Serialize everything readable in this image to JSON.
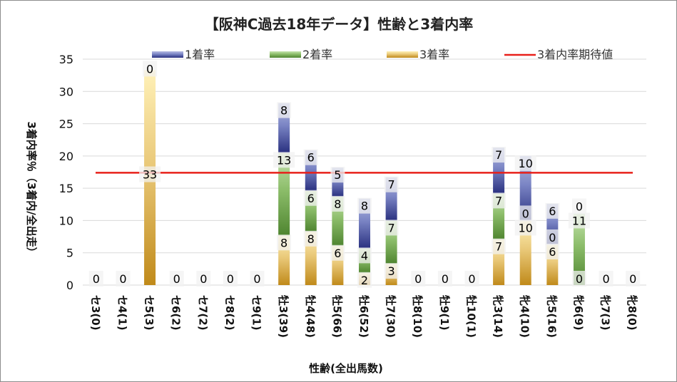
{
  "chart_data": {
    "type": "bar",
    "stacked": true,
    "title": "【阪神C過去18年データ】性齢と3着内率",
    "xlabel": "性齢(全出馬数)",
    "ylabel": "3着内率％（3着内/全出走）",
    "ylim": [
      0,
      35
    ],
    "yticks": [
      0,
      5,
      10,
      15,
      20,
      25,
      30,
      35
    ],
    "categories": [
      "セ3(0)",
      "セ4(1)",
      "セ5(3)",
      "セ6(2)",
      "セ7(2)",
      "セ8(2)",
      "セ9(1)",
      "牡3(39)",
      "牡4(48)",
      "牡5(66)",
      "牡6(52)",
      "牡7(30)",
      "牡8(10)",
      "牡9(1)",
      "牡10(1)",
      "牝3(14)",
      "牝4(10)",
      "牝5(16)",
      "牝6(9)",
      "牝7(3)",
      "牝8(0)"
    ],
    "series": [
      {
        "name": "3着率",
        "values": [
          0,
          0,
          33.3,
          0,
          0,
          0,
          0,
          7.7,
          8.3,
          6.1,
          1.9,
          3.3,
          0,
          0,
          0,
          7.1,
          10.0,
          6.3,
          0,
          0,
          0
        ]
      },
      {
        "name": "2着率",
        "values": [
          0,
          0,
          0,
          0,
          0,
          0,
          0,
          12.8,
          6.3,
          7.6,
          3.8,
          6.7,
          0,
          0,
          0,
          7.1,
          0,
          0,
          11.1,
          0,
          0
        ]
      },
      {
        "name": "1着率",
        "values": [
          0,
          0,
          0,
          0,
          0,
          0,
          0,
          7.7,
          6.3,
          4.5,
          7.7,
          6.7,
          0,
          0,
          0,
          7.1,
          10.0,
          6.3,
          0,
          0,
          0
        ]
      }
    ],
    "data_labels": {
      "3着率": [
        "0",
        "0",
        "33",
        "0",
        "0",
        "0",
        "0",
        "8",
        "8",
        "6",
        "2",
        "3",
        "0",
        "0",
        "0",
        "7",
        "10",
        "6",
        "0",
        "0",
        "0"
      ],
      "2着率": [
        "",
        "",
        "",
        "",
        "",
        "",
        "",
        "13",
        "6",
        "8",
        "4",
        "7",
        "",
        "",
        "",
        "7",
        "0",
        "0",
        "11",
        "",
        ""
      ],
      "1着率": [
        "",
        "",
        "0",
        "",
        "",
        "",
        "",
        "8",
        "6",
        "5",
        "8",
        "7",
        "",
        "",
        "",
        "7",
        "10",
        "6",
        "0",
        "",
        ""
      ]
    },
    "reference_line": {
      "name": "3着内率期待値",
      "value": 17.4
    },
    "legend": [
      "1着率",
      "2着率",
      "3着率",
      "3着内率期待値"
    ],
    "legend_position": "top",
    "grid": true,
    "colors": {
      "win": "#4a55a0",
      "place": "#5b8f3a",
      "show": "#c9972a",
      "ref": "#e8201a"
    }
  }
}
